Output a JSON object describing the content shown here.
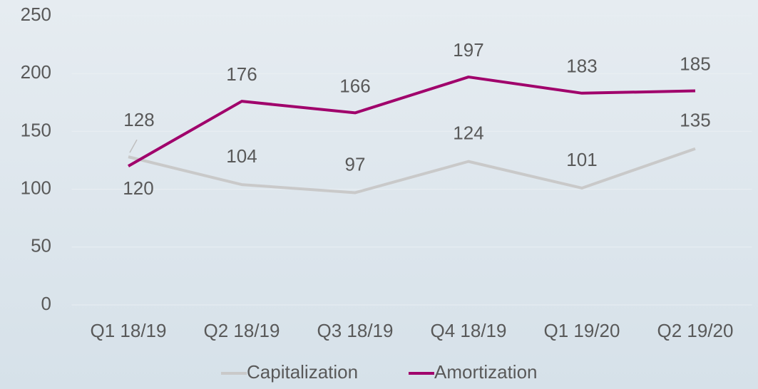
{
  "chart_data": {
    "type": "line",
    "categories": [
      "Q1 18/19",
      "Q2 18/19",
      "Q3 18/19",
      "Q4 18/19",
      "Q1 19/20",
      "Q2 19/20"
    ],
    "series": [
      {
        "name": "Capitalization",
        "color": "#c9c9c9",
        "values": [
          128,
          104,
          97,
          124,
          101,
          135
        ]
      },
      {
        "name": "Amortization",
        "color": "#a0006b",
        "values": [
          120,
          176,
          166,
          197,
          183,
          185
        ]
      }
    ],
    "ylim": [
      0,
      250
    ],
    "yticks": [
      0,
      50,
      100,
      150,
      200,
      250
    ],
    "grid": true,
    "legend": "bottom"
  }
}
